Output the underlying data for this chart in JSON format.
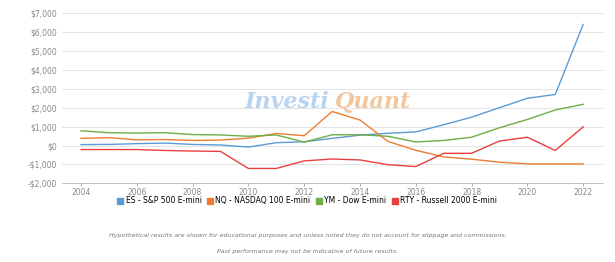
{
  "years": [
    2004,
    2005,
    2006,
    2007,
    2008,
    2009,
    2010,
    2011,
    2012,
    2013,
    2014,
    2015,
    2016,
    2017,
    2018,
    2019,
    2020,
    2021,
    2022
  ],
  "ES": [
    50,
    60,
    100,
    130,
    60,
    30,
    -80,
    150,
    200,
    380,
    550,
    650,
    720,
    1100,
    1500,
    2000,
    2500,
    2700,
    6400
  ],
  "NQ": [
    380,
    420,
    300,
    320,
    270,
    290,
    390,
    640,
    520,
    1800,
    1350,
    220,
    -250,
    -600,
    -720,
    -880,
    -970,
    -970,
    -970
  ],
  "YM": [
    780,
    680,
    660,
    680,
    580,
    560,
    490,
    560,
    180,
    570,
    570,
    490,
    190,
    270,
    440,
    940,
    1380,
    1880,
    2180
  ],
  "RTY": [
    -210,
    -210,
    -210,
    -260,
    -290,
    -310,
    -1210,
    -1210,
    -810,
    -710,
    -760,
    -1010,
    -1110,
    -410,
    -410,
    240,
    440,
    -260,
    990
  ],
  "ES_color": "#5b9bd5",
  "NQ_color": "#ed7d31",
  "YM_color": "#70ad47",
  "RTY_color": "#e84040",
  "background_color": "#ffffff",
  "ylim": [
    -2000,
    7000
  ],
  "yticks": [
    -2000,
    -1000,
    0,
    1000,
    2000,
    3000,
    4000,
    5000,
    6000,
    7000
  ],
  "xlim_min": 2003.3,
  "xlim_max": 2022.7,
  "xticks": [
    2004,
    2006,
    2008,
    2010,
    2012,
    2014,
    2016,
    2018,
    2020,
    2022
  ],
  "footnote1": "Hypothetical results are shown for educational purposes and unless noted they do not account for slippage and commissions.",
  "footnote2": "Past performance may not be indicative of future results.",
  "legend_labels": [
    "ES - S&P 500 E-mini",
    "NQ - NASDAQ 100 E-mini",
    "YM - Dow E-mini",
    "RTY - Russell 2000 E-mini"
  ],
  "watermark_left": "Investi",
  "watermark_right": "Quant",
  "watermark_color_left": "#b8d4ee",
  "watermark_color_right": "#f0c8a0",
  "line_width": 1.0
}
